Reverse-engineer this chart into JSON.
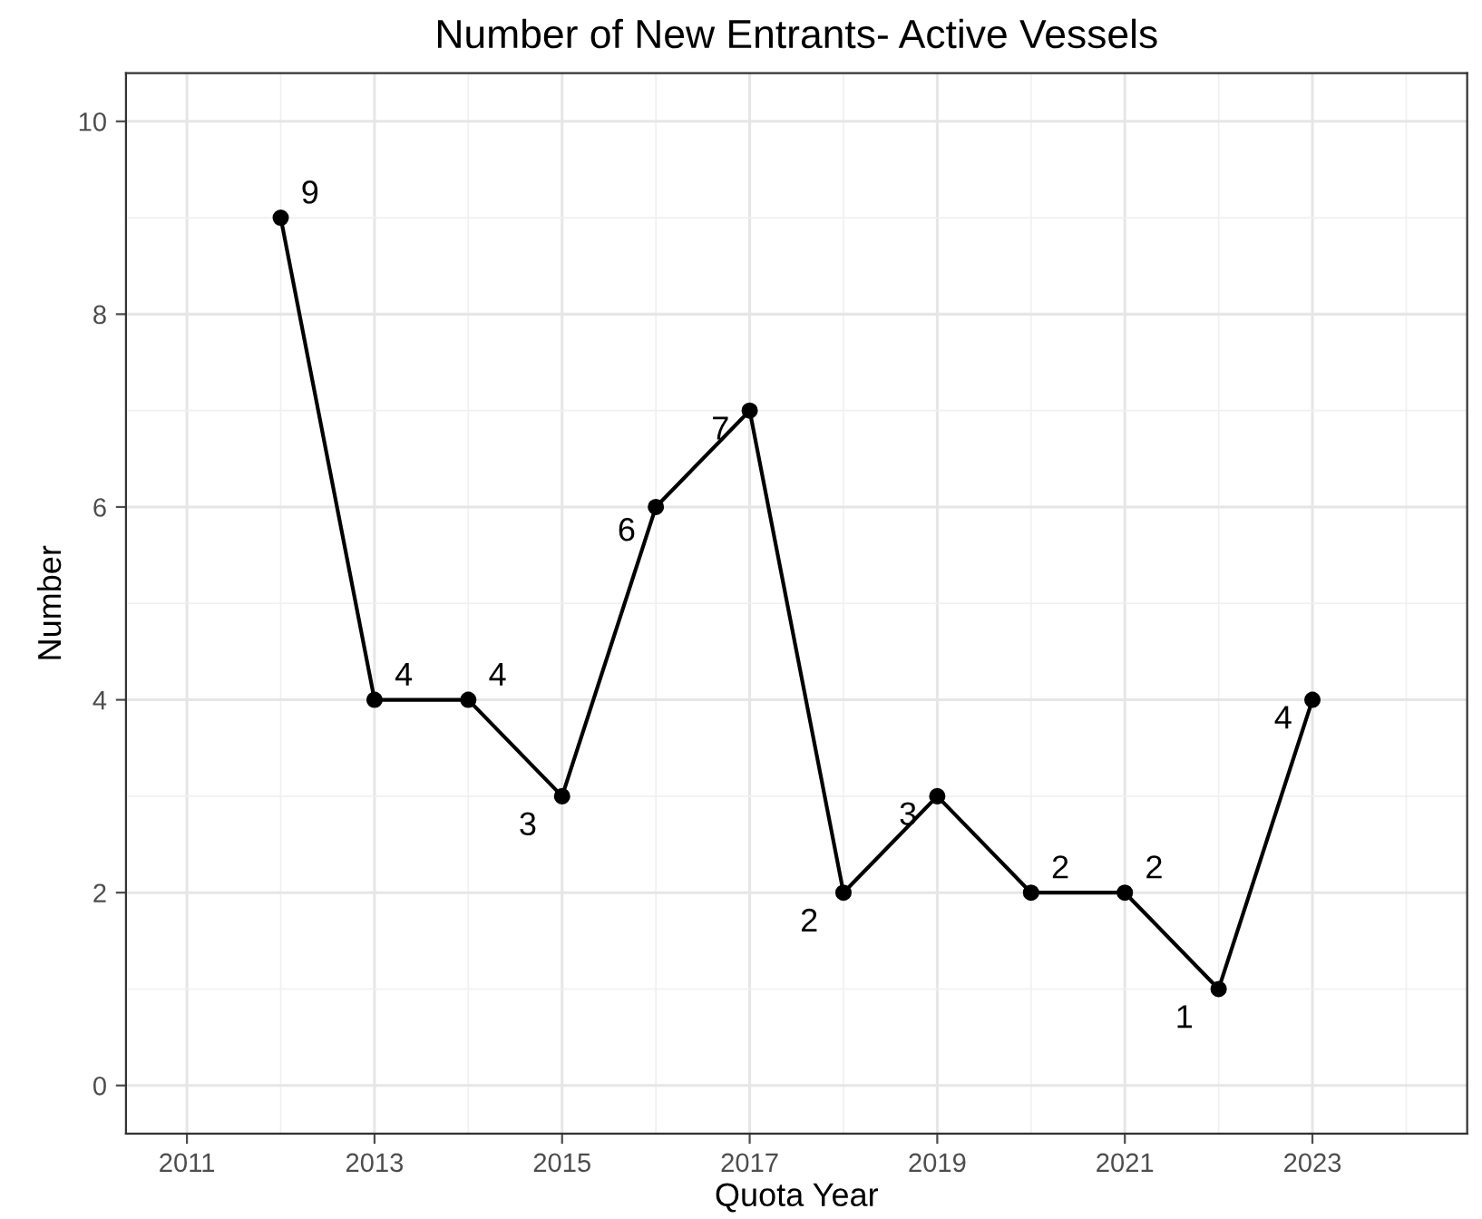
{
  "chart_data": {
    "type": "line",
    "title": "Number of New Entrants- Active Vessels",
    "xlabel": "Quota Year",
    "ylabel": "Number",
    "x": [
      2012,
      2013,
      2014,
      2015,
      2016,
      2017,
      2018,
      2019,
      2020,
      2021,
      2022,
      2023
    ],
    "series": [
      {
        "color": "#000000",
        "values": [
          9,
          4,
          4,
          3,
          6,
          7,
          2,
          3,
          2,
          2,
          1,
          4
        ]
      }
    ],
    "xlim": [
      2010.35,
      2024.65
    ],
    "xticks": [
      2011,
      2013,
      2015,
      2017,
      2019,
      2021,
      2023
    ],
    "ylim": [
      -0.5,
      10.5
    ],
    "yticks": [
      0,
      2,
      4,
      6,
      8,
      10
    ],
    "grid": true,
    "marker": "circle",
    "line_style": "solid",
    "data_labels": true
  }
}
